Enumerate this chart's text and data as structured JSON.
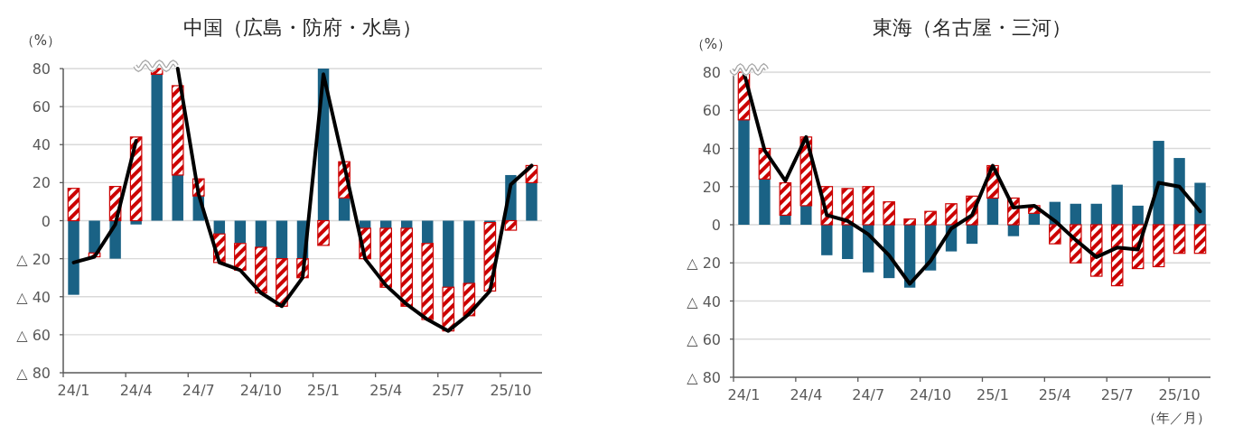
{
  "chart_data": [
    {
      "type": "bar",
      "title": "中国（広島・防府・水島）",
      "ylabel": "（%）",
      "stacked": true,
      "grid": "y",
      "categories": [
        "24/1",
        null,
        null,
        "24/4",
        null,
        null,
        "24/7",
        null,
        null,
        "24/10",
        null,
        null,
        "25/1",
        null,
        null,
        "25/4",
        null,
        null,
        "25/7",
        null,
        null,
        "25/10",
        null
      ],
      "ylim": [
        -80,
        80
      ],
      "yticks": [
        80,
        60,
        40,
        20,
        0,
        {
          "value": -20,
          "label": "△ 20"
        },
        {
          "value": -40,
          "label": "△ 40"
        },
        {
          "value": -60,
          "label": "△ 60"
        },
        {
          "value": -80,
          "label": "△ 80"
        }
      ],
      "series": [
        {
          "color": "#1a6285",
          "values": [
            -39,
            -17,
            -20,
            -2,
            77,
            24,
            13,
            -7,
            -12,
            -14,
            -20,
            -20,
            80,
            12,
            -4,
            -4,
            -4,
            -12,
            -35,
            -33,
            -1,
            24,
            20
          ]
        },
        {
          "color": "#cc0000",
          "values": [
            17,
            -2,
            18,
            44,
            3,
            47,
            9,
            -15,
            -14,
            -24,
            -25,
            -10,
            -13,
            19,
            -16,
            -31,
            -41,
            -40,
            -23,
            -17,
            -36,
            -5,
            9
          ]
        },
        {
          "type": "line",
          "color": "#000000",
          "values": [
            -22,
            -19,
            -2,
            42,
            null,
            80,
            14,
            -22,
            -26,
            -38,
            -45,
            -30,
            77,
            29,
            -20,
            -34,
            -44,
            -52,
            -58,
            -49,
            -37,
            19,
            29
          ]
        }
      ]
    },
    {
      "type": "bar",
      "title": "東海（名古屋・三河）",
      "ylabel": "（%）",
      "xlabel": "（年／月）",
      "stacked": true,
      "grid": "y",
      "categories": [
        "24/1",
        null,
        null,
        "24/4",
        null,
        null,
        "24/7",
        null,
        null,
        "24/10",
        null,
        null,
        "25/1",
        null,
        null,
        "25/4",
        null,
        null,
        "25/7",
        null,
        null,
        "25/10",
        null
      ],
      "ylim": [
        -80,
        80
      ],
      "yticks": [
        80,
        60,
        40,
        20,
        0,
        {
          "value": -20,
          "label": "△ 20"
        },
        {
          "value": -40,
          "label": "△ 40"
        },
        {
          "value": -60,
          "label": "△ 60"
        },
        {
          "value": -80,
          "label": "△ 80"
        }
      ],
      "series": [
        {
          "color": "#1a6285",
          "values": [
            55,
            24,
            5,
            10,
            -16,
            -18,
            -25,
            -28,
            -33,
            -24,
            -14,
            -10,
            14,
            -6,
            6,
            12,
            11,
            11,
            21,
            10,
            44,
            35,
            22
          ]
        },
        {
          "color": "#cc0000",
          "values": [
            25,
            16,
            17,
            36,
            20,
            19,
            20,
            12,
            3,
            7,
            11,
            15,
            17,
            14,
            4,
            -10,
            -20,
            -27,
            -32,
            -23,
            -22,
            -15,
            -15
          ]
        },
        {
          "type": "line",
          "color": "#000000",
          "values": [
            80,
            39,
            23,
            46,
            5,
            2,
            -5,
            -16,
            -31,
            -19,
            -2,
            5,
            31,
            9,
            10,
            2,
            -8,
            -17,
            -12,
            -13,
            22,
            20,
            7
          ]
        }
      ]
    }
  ]
}
